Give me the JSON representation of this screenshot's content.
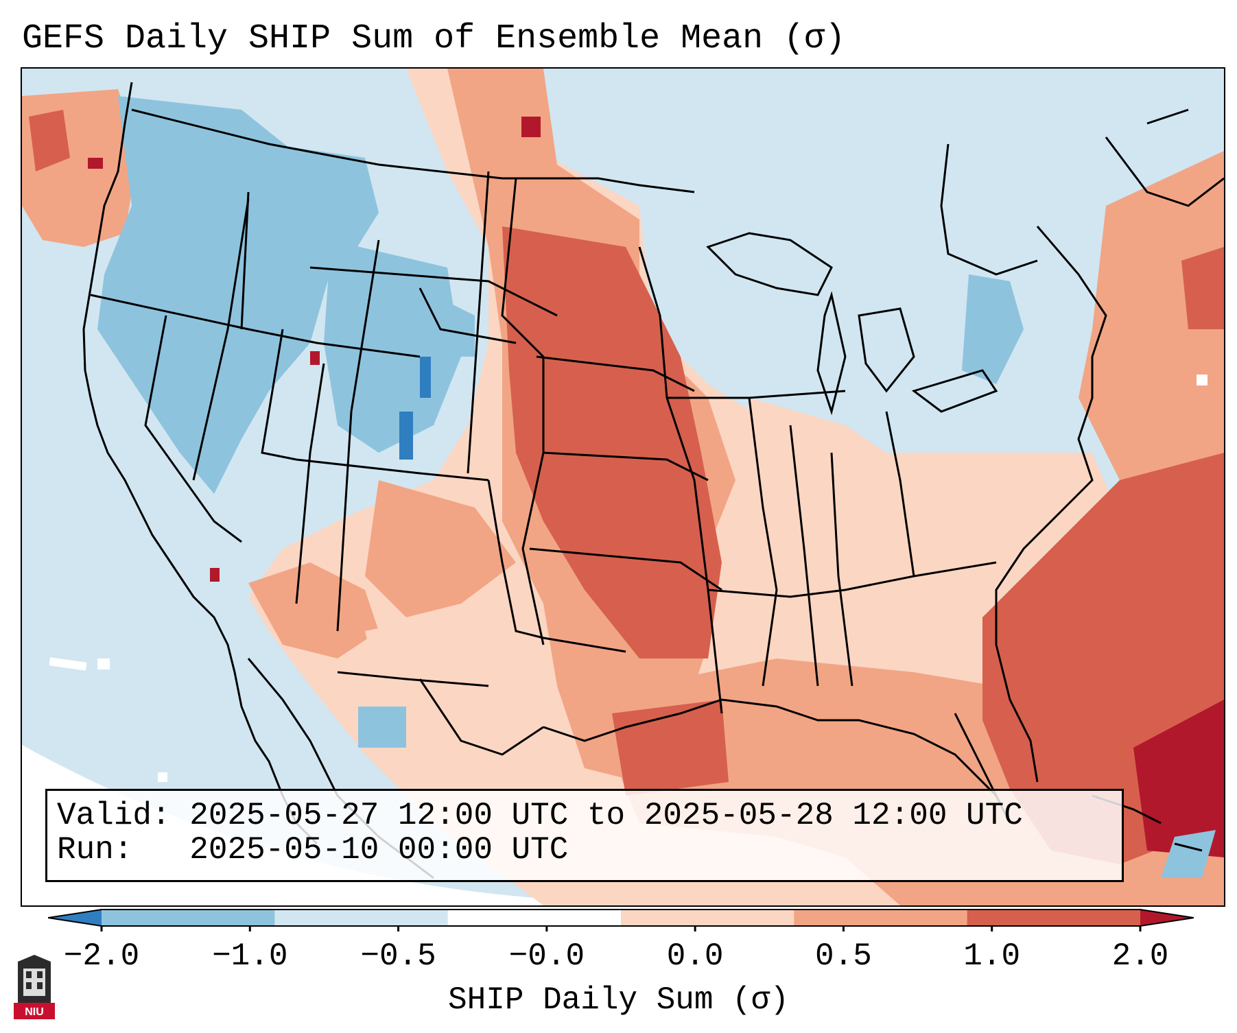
{
  "title": "GEFS Daily SHIP Sum of Ensemble Mean (σ)",
  "info": {
    "valid_key": "Valid:",
    "valid_value": "2025-05-27 12:00 UTC to 2025-05-28 12:00 UTC",
    "run_key": "Run:",
    "run_value": "2025-05-10 00:00 UTC"
  },
  "colorbar": {
    "label": "SHIP Daily Sum (σ)",
    "ticks": [
      "−2.0",
      "−1.0",
      "−0.5",
      "−0.0",
      "0.0",
      "0.5",
      "1.0",
      "2.0"
    ],
    "colors": [
      "#2f7ec0",
      "#8ec3de",
      "#d1e6f1",
      "#ffffff",
      "#fbd6c3",
      "#f1a585",
      "#d6604d",
      "#b2182b"
    ],
    "extend": "both"
  },
  "map": {
    "region": "CONUS",
    "field_colors": {
      "neg_strong": "#2f7ec0",
      "neg_mid": "#8ec3de",
      "neg_weak": "#d1e6f1",
      "pos_weak": "#fbd6c3",
      "pos_mid": "#f1a585",
      "pos_strong": "#d6604d",
      "pos_extreme": "#b2182b"
    },
    "outline_color": "#000000"
  },
  "logo": {
    "text": "NIU",
    "color": "#c8102e"
  }
}
